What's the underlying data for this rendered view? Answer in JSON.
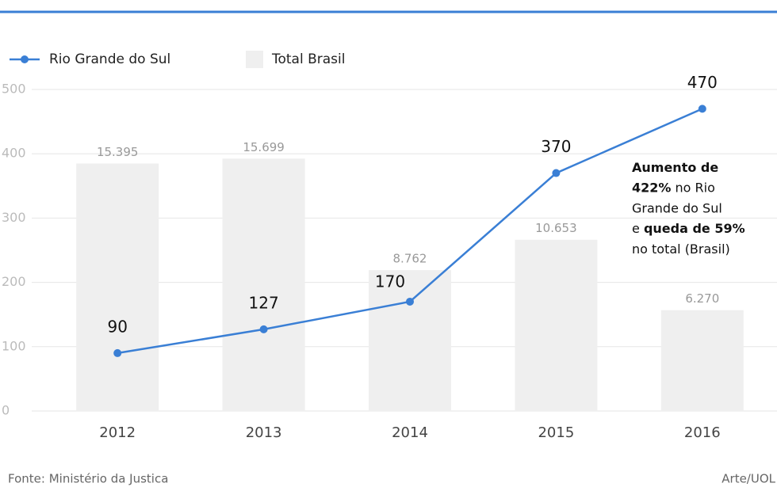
{
  "chart_data": {
    "type": "bar_line",
    "categories": [
      "2012",
      "2013",
      "2014",
      "2015",
      "2016"
    ],
    "series": [
      {
        "name": "Rio Grande do Sul",
        "type": "line",
        "color": "#3a7fd5",
        "values": [
          90,
          127,
          170,
          370,
          470
        ]
      },
      {
        "name": "Total Brasil",
        "type": "bar",
        "axis": "y2",
        "color": "#efefef",
        "values": [
          15395,
          15699,
          8762,
          10653,
          6270
        ],
        "value_labels": [
          "15.395",
          "15.699",
          "8.762",
          "10.653",
          "6.270"
        ]
      }
    ],
    "ylim": [
      0,
      500
    ],
    "yticks": [
      0,
      100,
      200,
      300,
      400,
      500
    ],
    "y2lim": [
      0,
      20000
    ],
    "grid": true,
    "annotation": [
      [
        {
          "text": "Aumento de",
          "bold": true
        }
      ],
      [
        {
          "text": "422%",
          "bold": true
        },
        {
          "text": " no Rio",
          "bold": false
        }
      ],
      [
        {
          "text": "Grande do Sul",
          "bold": false
        }
      ],
      [
        {
          "text": "e ",
          "bold": false
        },
        {
          "text": "queda de 59%",
          "bold": true
        }
      ],
      [
        {
          "text": "no total (Brasil)",
          "bold": false
        }
      ]
    ],
    "source": "Fonte: Ministério da Justica",
    "credit": "Arte/UOL"
  }
}
